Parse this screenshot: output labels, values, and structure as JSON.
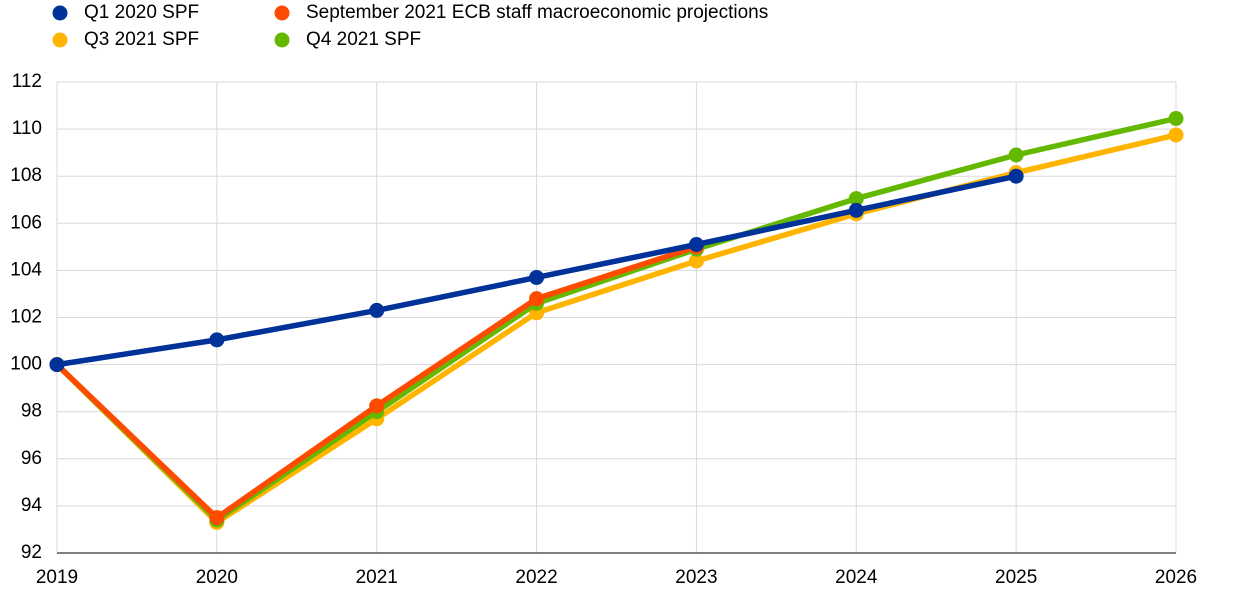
{
  "chart_data": {
    "type": "line",
    "categories": [
      "2019",
      "2020",
      "2021",
      "2022",
      "2023",
      "2024",
      "2025",
      "2026"
    ],
    "series": [
      {
        "name": "Q1 2020 SPF",
        "color": "#003299",
        "values": [
          100,
          101.05,
          102.3,
          103.7,
          105.1,
          106.55,
          108.0,
          null
        ]
      },
      {
        "name": "September 2021 ECB staff macroeconomic projections",
        "color": "#ff4b00",
        "values": [
          100,
          93.5,
          98.25,
          102.8,
          105.0,
          null,
          null,
          null
        ]
      },
      {
        "name": "Q3 2021 SPF",
        "color": "#ffb400",
        "values": [
          100,
          93.3,
          97.7,
          102.2,
          104.4,
          106.4,
          108.15,
          109.75
        ]
      },
      {
        "name": "Q4 2021 SPF",
        "color": "#65b800",
        "values": [
          100,
          93.4,
          98.0,
          102.6,
          104.9,
          107.05,
          108.9,
          110.45
        ]
      }
    ],
    "ylim": [
      92,
      112
    ],
    "yticks": [
      92,
      94,
      96,
      98,
      100,
      102,
      104,
      106,
      108,
      110,
      112
    ],
    "grid": true
  }
}
